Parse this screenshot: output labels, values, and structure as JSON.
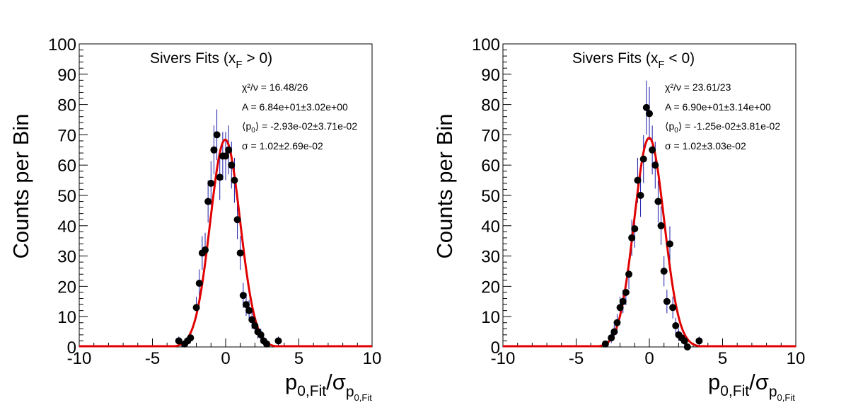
{
  "colors": {
    "frame": "#000000",
    "points": "#000000",
    "error_bars": "#1a1aa8",
    "fit_curve": "#e00000"
  },
  "chart_data": [
    {
      "type": "scatter",
      "title": "Sivers Fits (x",
      "title_sub": "F",
      "title_rest": " > 0)",
      "ylabel": "Counts per Bin",
      "xlabel_main": "p",
      "xlabel_sub": "0,Fit",
      "xlabel_sigma": "/σ",
      "xlabel_sigma_sub": "p",
      "xlabel_sigma_subsub": "0,Fit",
      "xlim": [
        -10,
        10
      ],
      "ylim": [
        0,
        100
      ],
      "xticks": [
        "-10",
        "-5",
        "0",
        "5",
        "10"
      ],
      "yticks": [
        "0",
        "10",
        "20",
        "30",
        "40",
        "50",
        "60",
        "70",
        "80",
        "90",
        "100"
      ],
      "stats": {
        "chi2": "χ²/ν = 16.48/26",
        "amp": "A = 6.84e+01±3.02e+00",
        "mean_pre": "⟨p",
        "mean_sub": "0",
        "mean_post": "⟩ = -2.93e-02±3.71e-02",
        "sigma": "σ = 1.02±2.69e-02"
      },
      "fit": {
        "A": 68.4,
        "mean": -0.0293,
        "sigma": 1.02
      },
      "x": [
        -3.2,
        -2.8,
        -2.6,
        -2.4,
        -2.0,
        -1.8,
        -1.6,
        -1.4,
        -1.2,
        -1.0,
        -0.8,
        -0.6,
        -0.4,
        -0.2,
        0.0,
        0.2,
        0.4,
        0.6,
        0.8,
        1.0,
        1.2,
        1.4,
        1.6,
        1.8,
        2.0,
        2.2,
        2.4,
        2.6,
        2.8,
        3.6
      ],
      "y": [
        2,
        1,
        2,
        3,
        13,
        21,
        31,
        32,
        48,
        54,
        65,
        70,
        56,
        63,
        63,
        65,
        60,
        55,
        42,
        31,
        17,
        14,
        12,
        9,
        7,
        5,
        4,
        2,
        1,
        2
      ]
    },
    {
      "type": "scatter",
      "title": "Sivers Fits (x",
      "title_sub": "F",
      "title_rest": " < 0)",
      "ylabel": "Counts per Bin",
      "xlabel_main": "p",
      "xlabel_sub": "0,Fit",
      "xlabel_sigma": "/σ",
      "xlabel_sigma_sub": "p",
      "xlabel_sigma_subsub": "0,Fit",
      "xlim": [
        -10,
        10
      ],
      "ylim": [
        0,
        100
      ],
      "xticks": [
        "-10",
        "-5",
        "0",
        "5",
        "10"
      ],
      "yticks": [
        "0",
        "10",
        "20",
        "30",
        "40",
        "50",
        "60",
        "70",
        "80",
        "90",
        "100"
      ],
      "stats": {
        "chi2": "χ²/ν = 23.61/23",
        "amp": "A = 6.90e+01±3.14e+00",
        "mean_pre": "⟨p",
        "mean_sub": "0",
        "mean_post": "⟩ = -1.25e-02±3.81e-02",
        "sigma": "σ = 1.02±3.03e-02"
      },
      "fit": {
        "A": 69.0,
        "mean": -0.0125,
        "sigma": 1.02
      },
      "x": [
        -3.0,
        -2.6,
        -2.4,
        -2.2,
        -2.0,
        -1.8,
        -1.6,
        -1.4,
        -1.2,
        -1.0,
        -0.8,
        -0.6,
        -0.4,
        -0.2,
        0.0,
        0.2,
        0.4,
        0.6,
        0.8,
        1.0,
        1.2,
        1.4,
        1.6,
        1.8,
        2.0,
        2.2,
        2.4,
        2.6,
        3.4
      ],
      "y": [
        1,
        3,
        5,
        8,
        13,
        15,
        18,
        24,
        36,
        39,
        55,
        50,
        62,
        79,
        77,
        65,
        60,
        48,
        40,
        25,
        15,
        34,
        13,
        7,
        4,
        3,
        2,
        0,
        2
      ]
    }
  ]
}
